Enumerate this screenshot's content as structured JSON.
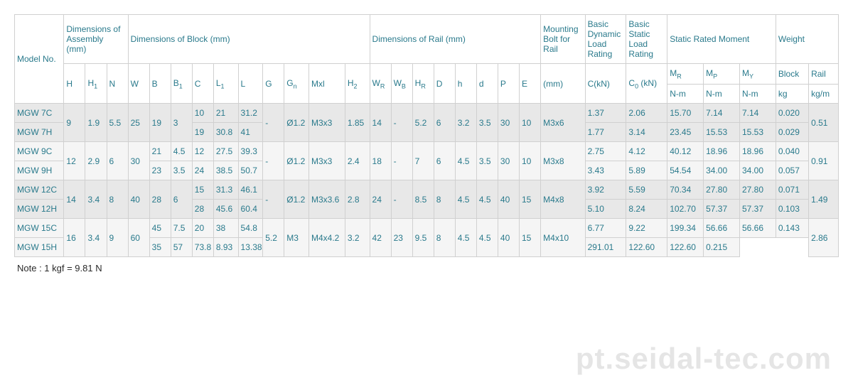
{
  "headers": {
    "model_no": "Model No.",
    "dim_assembly": "Dimensions of Assembly (mm)",
    "dim_block": "Dimensions of Block (mm)",
    "dim_rail": "Dimensions of Rail (mm)",
    "mounting_bolt": "Mounting Bolt for Rail",
    "basic_dynamic": "Basic Dynamic Load Rating",
    "basic_static": "Basic Static Load Rating",
    "static_moment": "Static Rated Moment",
    "weight": "Weight",
    "sub": {
      "H": "H",
      "H1": "H",
      "H1_sub": "1",
      "N": "N",
      "W": "W",
      "B": "B",
      "B1": "B",
      "B1_sub": "1",
      "C": "C",
      "L1": "L",
      "L1_sub": "1",
      "L": "L",
      "G": "G",
      "Gn": "G",
      "Gn_sub": "n",
      "Mxl": "Mxl",
      "H2": "H",
      "H2_sub": "2",
      "WR": "W",
      "WR_sub": "R",
      "WB": "W",
      "WB_sub": "B",
      "HR": "H",
      "HR_sub": "R",
      "D": "D",
      "h": "h",
      "d": "d",
      "P": "P",
      "E": "E",
      "mm": "(mm)",
      "CkN": "C(kN)",
      "C0kN": "C",
      "C0kN_sub": "0",
      "C0kN_suf": " (kN)",
      "MR": "M",
      "MR_sub": "R",
      "MP": "M",
      "MP_sub": "P",
      "MY": "M",
      "MY_sub": "Y",
      "Block": "Block",
      "Rail": "Rail",
      "Nm": "N-m",
      "kg": "kg",
      "kgm": "kg/m"
    }
  },
  "rows": [
    {
      "model": "MGW 7C",
      "H": "9",
      "H1": "1.9",
      "N": "5.5",
      "W": "25",
      "B": "19",
      "B1": "3",
      "C": "10",
      "L1": "21",
      "L": "31.2",
      "G": "-",
      "Gn": "Ø1.2",
      "Mxl": "M3x3",
      "H2": "1.85",
      "WR": "14",
      "WB": "-",
      "HR": "5.2",
      "D": "6",
      "h": "3.2",
      "d": "3.5",
      "P": "30",
      "E": "10",
      "bolt": "M3x6",
      "CkN": "1.37",
      "C0kN": "2.06",
      "MR": "15.70",
      "MP": "7.14",
      "MY": "7.14",
      "Block": "0.020",
      "Rail": "0.51",
      "span_start": true
    },
    {
      "model": "MGW 7H",
      "C": "19",
      "L1": "30.8",
      "L": "41",
      "CkN": "1.77",
      "C0kN": "3.14",
      "MR": "23.45",
      "MP": "15.53",
      "MY": "15.53",
      "Block": "0.029"
    },
    {
      "model": "MGW 9C",
      "H": "12",
      "H1": "2.9",
      "N": "6",
      "W": "30",
      "B": "21",
      "B1": "4.5",
      "C": "12",
      "L1": "27.5",
      "L": "39.3",
      "G": "-",
      "Gn": "Ø1.2",
      "Mxl": "M3x3",
      "H2": "2.4",
      "WR": "18",
      "WB": "-",
      "HR": "7",
      "D": "6",
      "h": "4.5",
      "d": "3.5",
      "P": "30",
      "E": "10",
      "bolt": "M3x8",
      "CkN": "2.75",
      "C0kN": "4.12",
      "MR": "40.12",
      "MP": "18.96",
      "MY": "18.96",
      "Block": "0.040",
      "Rail": "0.91",
      "span_start": true
    },
    {
      "model": "MGW 9H",
      "B": "23",
      "B1": "3.5",
      "C": "24",
      "L1": "38.5",
      "L": "50.7",
      "CkN": "3.43",
      "C0kN": "5.89",
      "MR": "54.54",
      "MP": "34.00",
      "MY": "34.00",
      "Block": "0.057"
    },
    {
      "model": "MGW 12C",
      "H": "14",
      "H1": "3.4",
      "N": "8",
      "W": "40",
      "B": "28",
      "B1": "6",
      "C": "15",
      "L1": "31.3",
      "L": "46.1",
      "G": "-",
      "Gn": "Ø1.2",
      "Mxl": "M3x3.6",
      "H2": "2.8",
      "WR": "24",
      "WB": "-",
      "HR": "8.5",
      "D": "8",
      "h": "4.5",
      "d": "4.5",
      "P": "40",
      "E": "15",
      "bolt": "M4x8",
      "CkN": "3.92",
      "C0kN": "5.59",
      "MR": "70.34",
      "MP": "27.80",
      "MY": "27.80",
      "Block": "0.071",
      "Rail": "1.49",
      "span_start": true
    },
    {
      "model": "MGW 12H",
      "C": "28",
      "L1": "45.6",
      "L": "60.4",
      "CkN": "5.10",
      "C0kN": "8.24",
      "MR": "102.70",
      "MP": "57.37",
      "MY": "57.37",
      "Block": "0.103"
    },
    {
      "model": "MGW 15C",
      "H": "16",
      "H1": "3.4",
      "N": "9",
      "W": "60",
      "B": "45",
      "B1": "7.5",
      "C": "20",
      "L1": "38",
      "L": "54.8",
      "G": "5.2",
      "Gn": "M3",
      "Mxl": "M4x4.2",
      "H2": "3.2",
      "WR": "42",
      "WB": "23",
      "HR": "9.5",
      "D": "8",
      "h": "4.5",
      "d": "4.5",
      "P": "40",
      "E": "15",
      "bolt": "M4x10",
      "CkN": "6.77",
      "C0kN": "9.22",
      "MR": "199.34",
      "MP": "56.66",
      "MY": "56.66",
      "Block": "0.143",
      "Rail": "2.86",
      "span_start": true
    },
    {
      "model": "MGW 15H",
      "C": "35",
      "L1": "57",
      "L": "73.8",
      "CkN": "8.93",
      "C0kN": "13.38",
      "MR": "291.01",
      "MP": "122.60",
      "MY": "122.60",
      "Block": "0.215"
    }
  ],
  "note": "Note : 1 kgf = 9.81 N",
  "watermark": "pt.seidal-tec.com",
  "colors": {
    "header_text": "#2a7a8c",
    "cell_text": "#2a7a8c",
    "border": "#d0d0d0",
    "row_even_bg": "#e8e8e8",
    "row_odd_bg": "#f5f5f5"
  }
}
